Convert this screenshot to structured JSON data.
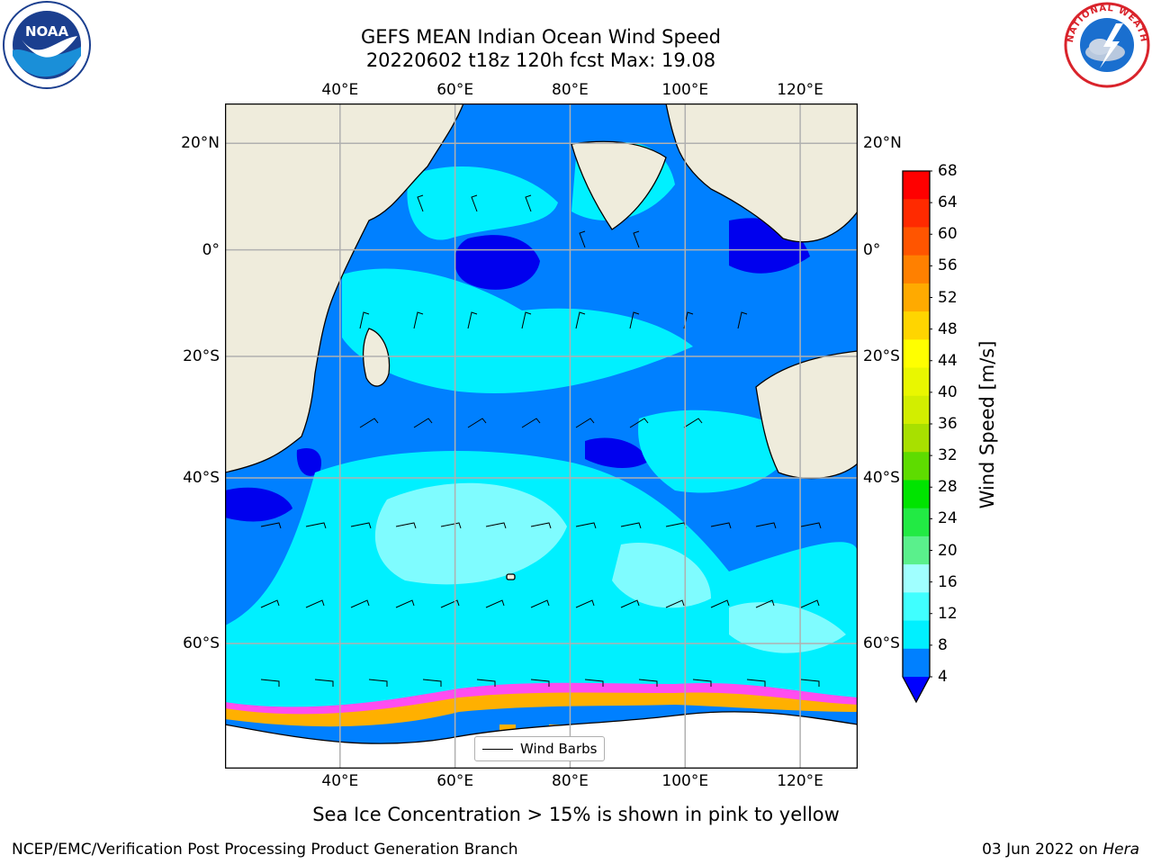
{
  "title": {
    "line1": "GEFS MEAN Indian Ocean Wind Speed",
    "line2": "20220602 t18z 120h fcst   Max: 19.08"
  },
  "map": {
    "lon_range": [
      20,
      130
    ],
    "lat_range": [
      -70,
      27
    ],
    "lon_ticks": [
      {
        "value": 40,
        "label": "40°E"
      },
      {
        "value": 60,
        "label": "60°E"
      },
      {
        "value": 80,
        "label": "80°E"
      },
      {
        "value": 100,
        "label": "100°E"
      },
      {
        "value": 120,
        "label": "120°E"
      }
    ],
    "lat_ticks": [
      {
        "value": 20,
        "label": "20°N"
      },
      {
        "value": 0,
        "label": "0°"
      },
      {
        "value": -20,
        "label": "20°S"
      },
      {
        "value": -40,
        "label": "40°S"
      },
      {
        "value": -60,
        "label": "60°S"
      }
    ],
    "grid": true,
    "land_color": "#efecdc",
    "legend": {
      "label": "Wind Barbs",
      "placement": "bottom-center"
    }
  },
  "colorbar": {
    "label": "Wind Speed [m/s]",
    "ticks": [
      "68",
      "64",
      "60",
      "56",
      "52",
      "48",
      "44",
      "40",
      "36",
      "32",
      "28",
      "24",
      "20",
      "16",
      "12",
      "8",
      "4"
    ],
    "colors": [
      "#ff0000",
      "#ff2a00",
      "#ff5500",
      "#ff8000",
      "#ffaa00",
      "#ffd500",
      "#ffff00",
      "#e9f700",
      "#d2ee00",
      "#a8e000",
      "#5edc00",
      "#00e400",
      "#22ea44",
      "#5af08c",
      "#a0ffff",
      "#40ffff",
      "#00f0ff",
      "#0080ff"
    ],
    "under_color": "#0000ff"
  },
  "footer": {
    "caption": "Sea Ice Concentration > 15% is shown in pink to yellow",
    "left": "NCEP/EMC/Verification Post Processing Product Generation Branch",
    "right_prefix": "03 Jun 2022 on ",
    "right_host": "Hera"
  },
  "logos": {
    "left": "NOAA",
    "right": "NATIONAL WEATHER SERVICE"
  }
}
